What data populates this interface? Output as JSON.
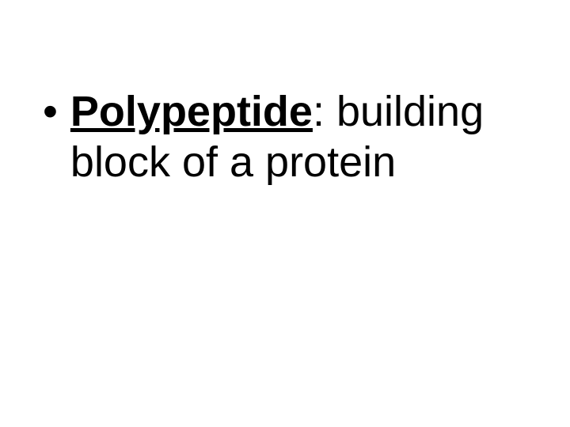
{
  "slide": {
    "background_color": "#ffffff",
    "text_color": "#000000",
    "bullet": {
      "marker": "•",
      "term": "Polypeptide",
      "separator": ":  ",
      "definition_part1": "building",
      "definition_part2": "block of a protein"
    },
    "typography": {
      "font_family": "Arial",
      "font_size_pt": 40,
      "line_height": 1.18,
      "term_weight": "bold",
      "term_underline": true
    }
  }
}
